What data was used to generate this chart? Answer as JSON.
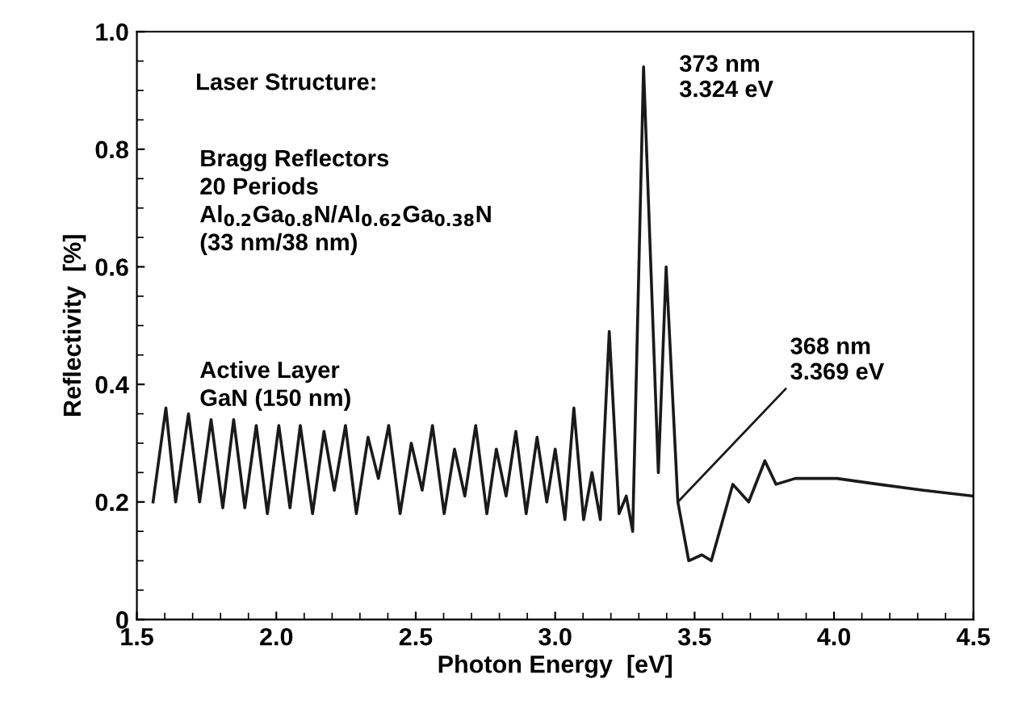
{
  "chart_data": {
    "type": "line",
    "xlabel": "Photon Energy  [eV]",
    "ylabel": "Reflectivity  [%]",
    "xlim": [
      1.5,
      4.5
    ],
    "ylim": [
      0,
      1.0
    ],
    "xticks": [
      1.5,
      {
        "value": 2.0,
        "label": "2.0"
      },
      2.5,
      {
        "value": 3.0,
        "label": "3.0"
      },
      3.5,
      {
        "value": 4.0,
        "label": "4.0"
      },
      4.5
    ],
    "yticks": [
      0,
      0.2,
      0.4,
      0.6,
      0.8,
      {
        "value": 1.0,
        "label": "1.0"
      }
    ],
    "grid": false,
    "marker": "none",
    "line_style": "solid",
    "annotations": [
      "Laser Structure:",
      "Bragg Reflectors\n20 Periods\nAl$_{0.2}$Ga$_{0.8}$N/Al$_{0.62}$Ga$_{0.38}$N\n(33 nm/38 nm)",
      "Active Layer\nGaN (150 nm)",
      {
        "text": "373 nm\n3.324 eV",
        "x": 3.324,
        "y": 0.94
      },
      {
        "text": "368 nm\n3.369 eV",
        "x": 3.44,
        "y": 0.2
      }
    ],
    "series": [
      {
        "color": "#1a1a1a",
        "x": [
          1.558,
          1.604,
          1.639,
          1.685,
          1.725,
          1.766,
          1.808,
          1.847,
          1.887,
          1.928,
          1.968,
          2.009,
          2.049,
          2.086,
          2.13,
          2.171,
          2.208,
          2.248,
          2.287,
          2.329,
          2.366,
          2.403,
          2.444,
          2.484,
          2.523,
          2.56,
          2.602,
          2.639,
          2.676,
          2.715,
          2.755,
          2.789,
          2.824,
          2.859,
          2.896,
          2.935,
          2.97,
          3.0,
          3.035,
          3.067,
          3.102,
          3.132,
          3.162,
          3.194,
          3.229,
          3.255,
          3.278,
          3.317,
          3.37,
          3.398,
          3.44,
          3.479,
          3.526,
          3.56,
          3.637,
          3.694,
          3.752,
          3.792,
          3.861,
          3.93,
          4.01,
          4.16,
          4.32,
          4.5
        ],
        "values": [
          0.2,
          0.36,
          0.2,
          0.35,
          0.2,
          0.34,
          0.19,
          0.34,
          0.19,
          0.33,
          0.18,
          0.33,
          0.19,
          0.33,
          0.18,
          0.32,
          0.22,
          0.33,
          0.18,
          0.31,
          0.24,
          0.33,
          0.18,
          0.3,
          0.22,
          0.33,
          0.18,
          0.29,
          0.21,
          0.33,
          0.18,
          0.29,
          0.21,
          0.32,
          0.18,
          0.31,
          0.2,
          0.29,
          0.17,
          0.36,
          0.17,
          0.25,
          0.17,
          0.49,
          0.18,
          0.21,
          0.15,
          0.94,
          0.25,
          0.6,
          0.2,
          0.1,
          0.11,
          0.1,
          0.23,
          0.2,
          0.27,
          0.23,
          0.24,
          0.24,
          0.24,
          0.23,
          0.22,
          0.21
        ]
      }
    ]
  }
}
